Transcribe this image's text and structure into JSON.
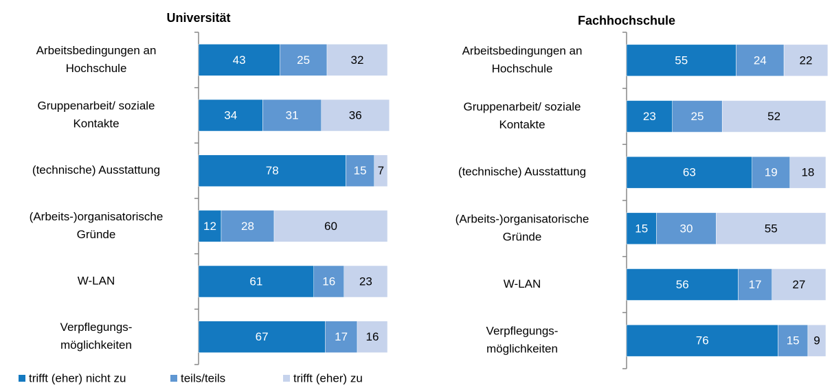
{
  "chart_data": [
    {
      "type": "stacked-bar-horizontal",
      "title": "Universität",
      "categories": [
        [
          "Arbeitsbedingungen an",
          "Hochschule"
        ],
        [
          "Gruppenarbeit/ soziale",
          "Kontakte"
        ],
        [
          "(technische) Ausstattung"
        ],
        [
          "(Arbeits-)organisatorische",
          "Gründe"
        ],
        [
          "W-LAN"
        ],
        [
          "Verpflegungs-",
          "möglichkeiten"
        ]
      ],
      "series": [
        {
          "name": "trifft (eher) nicht zu",
          "color": "#1479c0",
          "values": [
            43,
            34,
            78,
            12,
            61,
            67
          ]
        },
        {
          "name": "teils/teils",
          "color": "#5f97d2",
          "values": [
            25,
            31,
            15,
            28,
            16,
            17
          ]
        },
        {
          "name": "trifft (eher) zu",
          "color": "#c6d3ec",
          "values": [
            32,
            36,
            7,
            60,
            23,
            16
          ]
        }
      ]
    },
    {
      "type": "stacked-bar-horizontal",
      "title": "Fachhochschule",
      "categories": [
        [
          "Arbeitsbedingungen an",
          "Hochschule"
        ],
        [
          "Gruppenarbeit/ soziale",
          "Kontakte"
        ],
        [
          "(technische) Ausstattung"
        ],
        [
          "(Arbeits-)organisatorische",
          "Gründe"
        ],
        [
          "W-LAN"
        ],
        [
          "Verpflegungs-",
          "möglichkeiten"
        ]
      ],
      "series": [
        {
          "color": "#1479c0",
          "values": [
            55,
            23,
            63,
            15,
            56,
            76
          ]
        },
        {
          "color": "#5f97d2",
          "values": [
            24,
            25,
            19,
            30,
            17,
            15
          ]
        },
        {
          "color": "#c6d3ec",
          "values": [
            22,
            52,
            18,
            55,
            27,
            9
          ]
        }
      ]
    }
  ]
}
